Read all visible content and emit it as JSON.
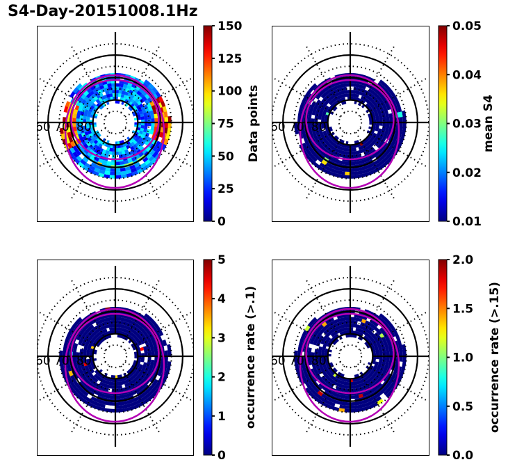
{
  "figure": {
    "title": "S4-Day-20151008.1Hz"
  },
  "chart_data": [
    {
      "type": "heatmap",
      "projection": "polar (magnetic latitude / local time)",
      "title": "",
      "colorbar": {
        "label": "Data points",
        "range": [
          0,
          150
        ],
        "ticks": [
          "0",
          "25",
          "50",
          "75",
          "100",
          "125",
          "150"
        ],
        "colormap": "jet"
      },
      "latitude_labels": [
        "60",
        "70",
        "80"
      ],
      "oval_boundaries": [
        "magenta ring (equatorward)",
        "magenta ring (poleward)"
      ],
      "description": "Ring of coverage between ~65° and ~80° latitude; mostly 10–75 points per bin, with higher counts (100–150) on the dawn/dusk flanks"
    },
    {
      "type": "heatmap",
      "projection": "polar (magnetic latitude / local time)",
      "title": "",
      "colorbar": {
        "label": "mean S4",
        "range": [
          0.01,
          0.05
        ],
        "ticks": [
          "0.01",
          "0.02",
          "0.03",
          "0.04",
          "0.05"
        ],
        "colormap": "jet"
      },
      "latitude_labels": [
        "60",
        "70",
        "80"
      ],
      "description": "Nearly all bins at ~0.01 (dark blue), with a few isolated bins at ~0.02–0.05"
    },
    {
      "type": "heatmap",
      "projection": "polar (magnetic latitude / local time)",
      "title": "",
      "colorbar": {
        "label": "occurrence rate (>.1)",
        "range": [
          0,
          5
        ],
        "ticks": [
          "0",
          "1",
          "2",
          "3",
          "4",
          "5"
        ],
        "colormap": "jet"
      },
      "latitude_labels": [
        "60",
        "70",
        "80"
      ],
      "description": "Mostly 0 occurrence; isolated bins reaching ~2–5"
    },
    {
      "type": "heatmap",
      "projection": "polar (magnetic latitude / local time)",
      "title": "",
      "colorbar": {
        "label": "occurrence rate (>.15)",
        "range": [
          0.0,
          2.0
        ],
        "ticks": [
          "0.0",
          "0.5",
          "1.0",
          "1.5",
          "2.0"
        ],
        "colormap": "jet"
      },
      "latitude_labels": [
        "60",
        "70",
        "80"
      ],
      "description": "Mostly 0 occurrence; a few bins at ~1.5–2.0"
    }
  ]
}
